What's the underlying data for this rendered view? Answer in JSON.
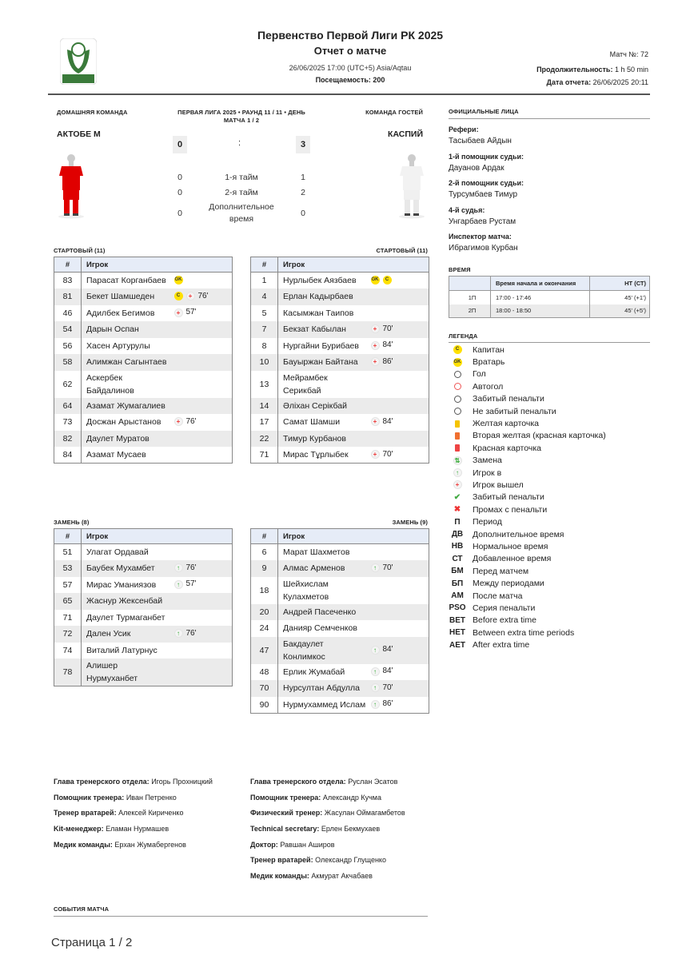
{
  "header": {
    "title": "Первенство Первой Лиги РК 2025",
    "subtitle": "Отчет о матче",
    "datetime": "26/06/2025 17:00 (UTC+5) Asia/Aqtau",
    "attendance_label": "Посещаемость:",
    "attendance": "200",
    "match_no_label": "Матч №:",
    "match_no": "72",
    "duration_label": "Продолжительность:",
    "duration": "1 h 50 min",
    "report_date_label": "Дата отчета:",
    "report_date": "26/06/2025 20:11",
    "logo_text": "КАЗАХСТАН ПЕРВАЯ ЛИГА"
  },
  "match": {
    "home_label": "ДОМАШНЯЯ КОМАНДА",
    "away_label": "КОМАНДА ГОСТЕЙ",
    "round": "ПЕРВАЯ ЛИГА 2025 • РАУНД 11 / 11 • ДЕНЬ МАТЧА 1 / 2",
    "home_team": "АКТОБЕ М",
    "away_team": "КАСПИЙ",
    "home_score": "0",
    "away_score": "3",
    "sep": ":",
    "home_kit_color": "#e00000",
    "away_kit_color": "#f2f2f2",
    "periods": [
      {
        "label": "1-я тайм",
        "home": "0",
        "away": "1"
      },
      {
        "label": "2-я тайм",
        "home": "0",
        "away": "2"
      },
      {
        "label": "Дополнительное время",
        "home": "0",
        "away": "0"
      }
    ]
  },
  "col_num": "#",
  "col_player": "Игрок",
  "lineups": {
    "home_start_label": "СТАРТОВЫЙ (11)",
    "away_start_label": "СТАРТОВЫЙ (11)",
    "home_subs_label": "ЗАМЕНЬ (8)",
    "away_subs_label": "ЗАМЕНЬ (9)",
    "home_start": [
      {
        "no": "83",
        "name": "Парасат Корганбаев",
        "ev": [
          {
            "t": "gk",
            "v": "GK"
          }
        ]
      },
      {
        "no": "81",
        "name": "Бекет Шамшеден",
        "ev": [
          {
            "t": "c",
            "v": "C"
          },
          {
            "t": "out",
            "v": "+",
            "m": "76'"
          }
        ]
      },
      {
        "no": "46",
        "name": "Адилбек Бегимов",
        "ev": [
          {
            "t": "out",
            "v": "+",
            "m": "57'"
          }
        ]
      },
      {
        "no": "54",
        "name": "Дарын Оспан",
        "ev": []
      },
      {
        "no": "56",
        "name": "Хасен Артурулы",
        "ev": []
      },
      {
        "no": "58",
        "name": "Алимжан Сагынтаев",
        "ev": []
      },
      {
        "no": "62",
        "name": "Аскербек Байдалинов",
        "ev": []
      },
      {
        "no": "64",
        "name": "Азамат Жумагалиев",
        "ev": []
      },
      {
        "no": "73",
        "name": "Досжан Арыстанов",
        "ev": [
          {
            "t": "out",
            "v": "+",
            "m": "76'"
          }
        ]
      },
      {
        "no": "82",
        "name": "Даулет Муратов",
        "ev": []
      },
      {
        "no": "84",
        "name": "Азамат Мусаев",
        "ev": []
      }
    ],
    "away_start": [
      {
        "no": "1",
        "name": "Нурлыбек Аязбаев",
        "ev": [
          {
            "t": "gk",
            "v": "GK"
          },
          {
            "t": "c",
            "v": "C"
          }
        ]
      },
      {
        "no": "4",
        "name": "Ерлан Кадырбаев",
        "ev": []
      },
      {
        "no": "5",
        "name": "Касымжан Таипов",
        "ev": []
      },
      {
        "no": "7",
        "name": "Бекзат Кабылан",
        "ev": [
          {
            "t": "out",
            "v": "+",
            "m": "70'"
          }
        ]
      },
      {
        "no": "8",
        "name": "Нургайни Бурибаев",
        "ev": [
          {
            "t": "out",
            "v": "+",
            "m": "84'"
          }
        ]
      },
      {
        "no": "10",
        "name": "Бауыржан Байтана",
        "ev": [
          {
            "t": "out",
            "v": "+",
            "m": "86'"
          }
        ]
      },
      {
        "no": "13",
        "name": "Мейрамбек Серикбай",
        "ev": []
      },
      {
        "no": "14",
        "name": "Әліхан Серікбай",
        "ev": []
      },
      {
        "no": "17",
        "name": "Самат Шамши",
        "ev": [
          {
            "t": "out",
            "v": "+",
            "m": "84'"
          }
        ]
      },
      {
        "no": "22",
        "name": "Тимур Курбанов",
        "ev": []
      },
      {
        "no": "71",
        "name": "Мирас Тұрлыбек",
        "ev": [
          {
            "t": "out",
            "v": "+",
            "m": "70'"
          }
        ]
      }
    ],
    "home_subs": [
      {
        "no": "51",
        "name": "Улагат Ордавай",
        "ev": []
      },
      {
        "no": "53",
        "name": "Баубек Мухамбет",
        "ev": [
          {
            "t": "in",
            "v": "↑",
            "m": "76'"
          }
        ]
      },
      {
        "no": "57",
        "name": "Мирас Уманиязов",
        "ev": [
          {
            "t": "in",
            "v": "↑",
            "m": "57'"
          }
        ]
      },
      {
        "no": "65",
        "name": "Жаснур Жексенбай",
        "ev": []
      },
      {
        "no": "71",
        "name": "Даулет Турмаганбет",
        "ev": []
      },
      {
        "no": "72",
        "name": "Дален Усик",
        "ev": [
          {
            "t": "in",
            "v": "↑",
            "m": "76'"
          }
        ]
      },
      {
        "no": "74",
        "name": "Виталий Латурнус",
        "ev": []
      },
      {
        "no": "78",
        "name": "Алишер Нурмуханбет",
        "ev": []
      }
    ],
    "away_subs": [
      {
        "no": "6",
        "name": "Марат Шахметов",
        "ev": []
      },
      {
        "no": "9",
        "name": "Алмас Арменов",
        "ev": [
          {
            "t": "in",
            "v": "↑",
            "m": "70'"
          }
        ]
      },
      {
        "no": "18",
        "name": "Шейхислам Кулахметов",
        "ev": []
      },
      {
        "no": "20",
        "name": "Андрей Пасеченко",
        "ev": []
      },
      {
        "no": "24",
        "name": "Данияр Семченков",
        "ev": []
      },
      {
        "no": "47",
        "name": "Бакдаулет Конлимкос",
        "ev": [
          {
            "t": "in",
            "v": "↑",
            "m": "84'"
          }
        ]
      },
      {
        "no": "48",
        "name": "Ерлик Жумабай",
        "ev": [
          {
            "t": "in",
            "v": "↑",
            "m": "84'"
          }
        ]
      },
      {
        "no": "70",
        "name": "Нурсултан Абдулла",
        "ev": [
          {
            "t": "in",
            "v": "↑",
            "m": "70'"
          }
        ]
      },
      {
        "no": "90",
        "name": "Нурмухаммед Ислам",
        "ev": [
          {
            "t": "in",
            "v": "↑",
            "m": "86'"
          }
        ]
      }
    ]
  },
  "officials": {
    "title": "ОФИЦИАЛЬНЫЕ ЛИЦА",
    "items": [
      {
        "label": "Рефери:",
        "name": "Тасыбаев Айдын"
      },
      {
        "label": "1-й помощник судьи:",
        "name": "Дауанов Ардак"
      },
      {
        "label": "2-й помощник судьи:",
        "name": "Турсумбаев Тимур"
      },
      {
        "label": "4-й судья:",
        "name": "Унгарбаев Рустам"
      },
      {
        "label": "Инспектор матча:",
        "name": "Ибрагимов Курбан"
      }
    ]
  },
  "time": {
    "title": "ВРЕМЯ",
    "col_start_end": "Время начала и окончания",
    "col_ht": "HT (СТ)",
    "rows": [
      {
        "period": "1П",
        "range": "17:00 - 17:46",
        "ht": "45' (+1')"
      },
      {
        "period": "2П",
        "range": "18:00 - 18:50",
        "ht": "45' (+5')"
      }
    ]
  },
  "legend": {
    "title": "ЛЕГЕНДА",
    "items": [
      {
        "icon": "captain-icon",
        "key": "C",
        "label": "Капитан"
      },
      {
        "icon": "goalkeeper-icon",
        "key": "GK",
        "label": "Вратарь"
      },
      {
        "icon": "goal-icon",
        "key": "",
        "label": "Гол"
      },
      {
        "icon": "own-goal-icon",
        "key": "",
        "label": "Автогол"
      },
      {
        "icon": "penalty-scored-icon",
        "key": "",
        "label": "Забитый пенальти"
      },
      {
        "icon": "penalty-missed-icon",
        "key": "",
        "label": "Не забитый пенальти"
      },
      {
        "icon": "yellow-card-icon",
        "key": "",
        "label": "Желтая карточка"
      },
      {
        "icon": "second-yellow-icon",
        "key": "",
        "label": "Вторая желтая (красная карточка)"
      },
      {
        "icon": "red-card-icon",
        "key": "",
        "label": "Красная карточка"
      },
      {
        "icon": "substitution-icon",
        "key": "",
        "label": "Замена"
      },
      {
        "icon": "player-in-icon",
        "key": "",
        "label": "Игрок в"
      },
      {
        "icon": "player-out-icon",
        "key": "",
        "label": "Игрок вышел"
      },
      {
        "icon": "check-icon",
        "key": "",
        "label": "Забитый пенальти"
      },
      {
        "icon": "cross-icon",
        "key": "",
        "label": "Промах с пенальти"
      },
      {
        "icon": "",
        "key": "П",
        "label": "Период"
      },
      {
        "icon": "",
        "key": "ДВ",
        "label": "Дополнительное время"
      },
      {
        "icon": "",
        "key": "НВ",
        "label": "Нормальное время"
      },
      {
        "icon": "",
        "key": "СТ",
        "label": "Добавленное время"
      },
      {
        "icon": "",
        "key": "БМ",
        "label": "Перед матчем"
      },
      {
        "icon": "",
        "key": "БП",
        "label": "Между периодами"
      },
      {
        "icon": "",
        "key": "АМ",
        "label": "После матча"
      },
      {
        "icon": "",
        "key": "PSO",
        "label": "Серия пенальти"
      },
      {
        "icon": "",
        "key": "BET",
        "label": "Before extra time"
      },
      {
        "icon": "",
        "key": "HET",
        "label": "Between extra time periods"
      },
      {
        "icon": "",
        "key": "AET",
        "label": "After extra time"
      }
    ]
  },
  "staff": {
    "home": [
      {
        "label": "Глава тренерского отдела:",
        "name": "Игорь Прохницкий"
      },
      {
        "label": "Помощник тренера:",
        "name": "Иван Петренко"
      },
      {
        "label": "Тренер вратарей:",
        "name": "Алексей Кириченко"
      },
      {
        "label": "Kit-менеджер:",
        "name": "Еламан Нурмашев"
      },
      {
        "label": "Медик команды:",
        "name": "Ерхан Жумабергенов"
      }
    ],
    "away": [
      {
        "label": "Глава тренерского отдела:",
        "name": "Руслан Эсатов"
      },
      {
        "label": "Помощник тренера:",
        "name": "Александр Кучма"
      },
      {
        "label": "Физический тренер:",
        "name": "Жасулан Оймагамбетов"
      },
      {
        "label": "Technical secretary:",
        "name": "Ерлен Бекмухаев"
      },
      {
        "label": "Доктор:",
        "name": "Равшан Аширов"
      },
      {
        "label": "Тренер вратарей:",
        "name": "Олександр Глущенко"
      },
      {
        "label": "Медик команды:",
        "name": "Акмурат Акчабаев"
      }
    ]
  },
  "events_title": "СОБЫТИЯ МАТЧА",
  "footer": {
    "page": "Страница 1 / 2"
  }
}
